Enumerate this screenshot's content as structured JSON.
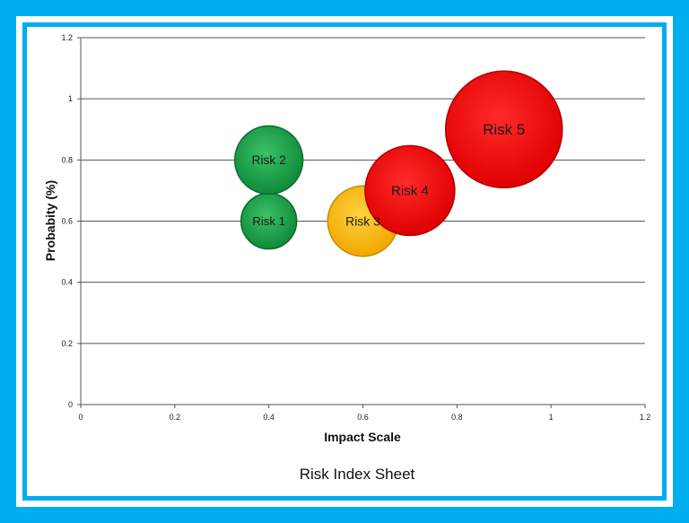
{
  "chart_data": {
    "type": "bubble",
    "title": "Risk Index Sheet",
    "xlabel": "Impact Scale",
    "ylabel": "Probabity (%)",
    "xlim": [
      0,
      1.2
    ],
    "ylim": [
      0,
      1.2
    ],
    "x_ticks": [
      "0",
      "0.2",
      "0.4",
      "0.6",
      "0.8",
      "1",
      "1.2"
    ],
    "y_ticks": [
      "0",
      "0.2",
      "0.4",
      "0.6",
      "0.8",
      "1",
      "1.2"
    ],
    "grid": "horizontal",
    "points": [
      {
        "label": "Risk 1",
        "x": 0.4,
        "y": 0.6,
        "size": 1.0,
        "color": "#16a34a"
      },
      {
        "label": "Risk 2",
        "x": 0.4,
        "y": 0.8,
        "size": 1.5,
        "color": "#16a34a"
      },
      {
        "label": "Risk 3",
        "x": 0.6,
        "y": 0.6,
        "size": 1.6,
        "color": "#ffc000"
      },
      {
        "label": "Risk 4",
        "x": 0.7,
        "y": 0.7,
        "size": 2.6,
        "color": "#ff0000"
      },
      {
        "label": "Risk 5",
        "x": 0.9,
        "y": 0.9,
        "size": 4.4,
        "color": "#ff0000"
      }
    ]
  }
}
